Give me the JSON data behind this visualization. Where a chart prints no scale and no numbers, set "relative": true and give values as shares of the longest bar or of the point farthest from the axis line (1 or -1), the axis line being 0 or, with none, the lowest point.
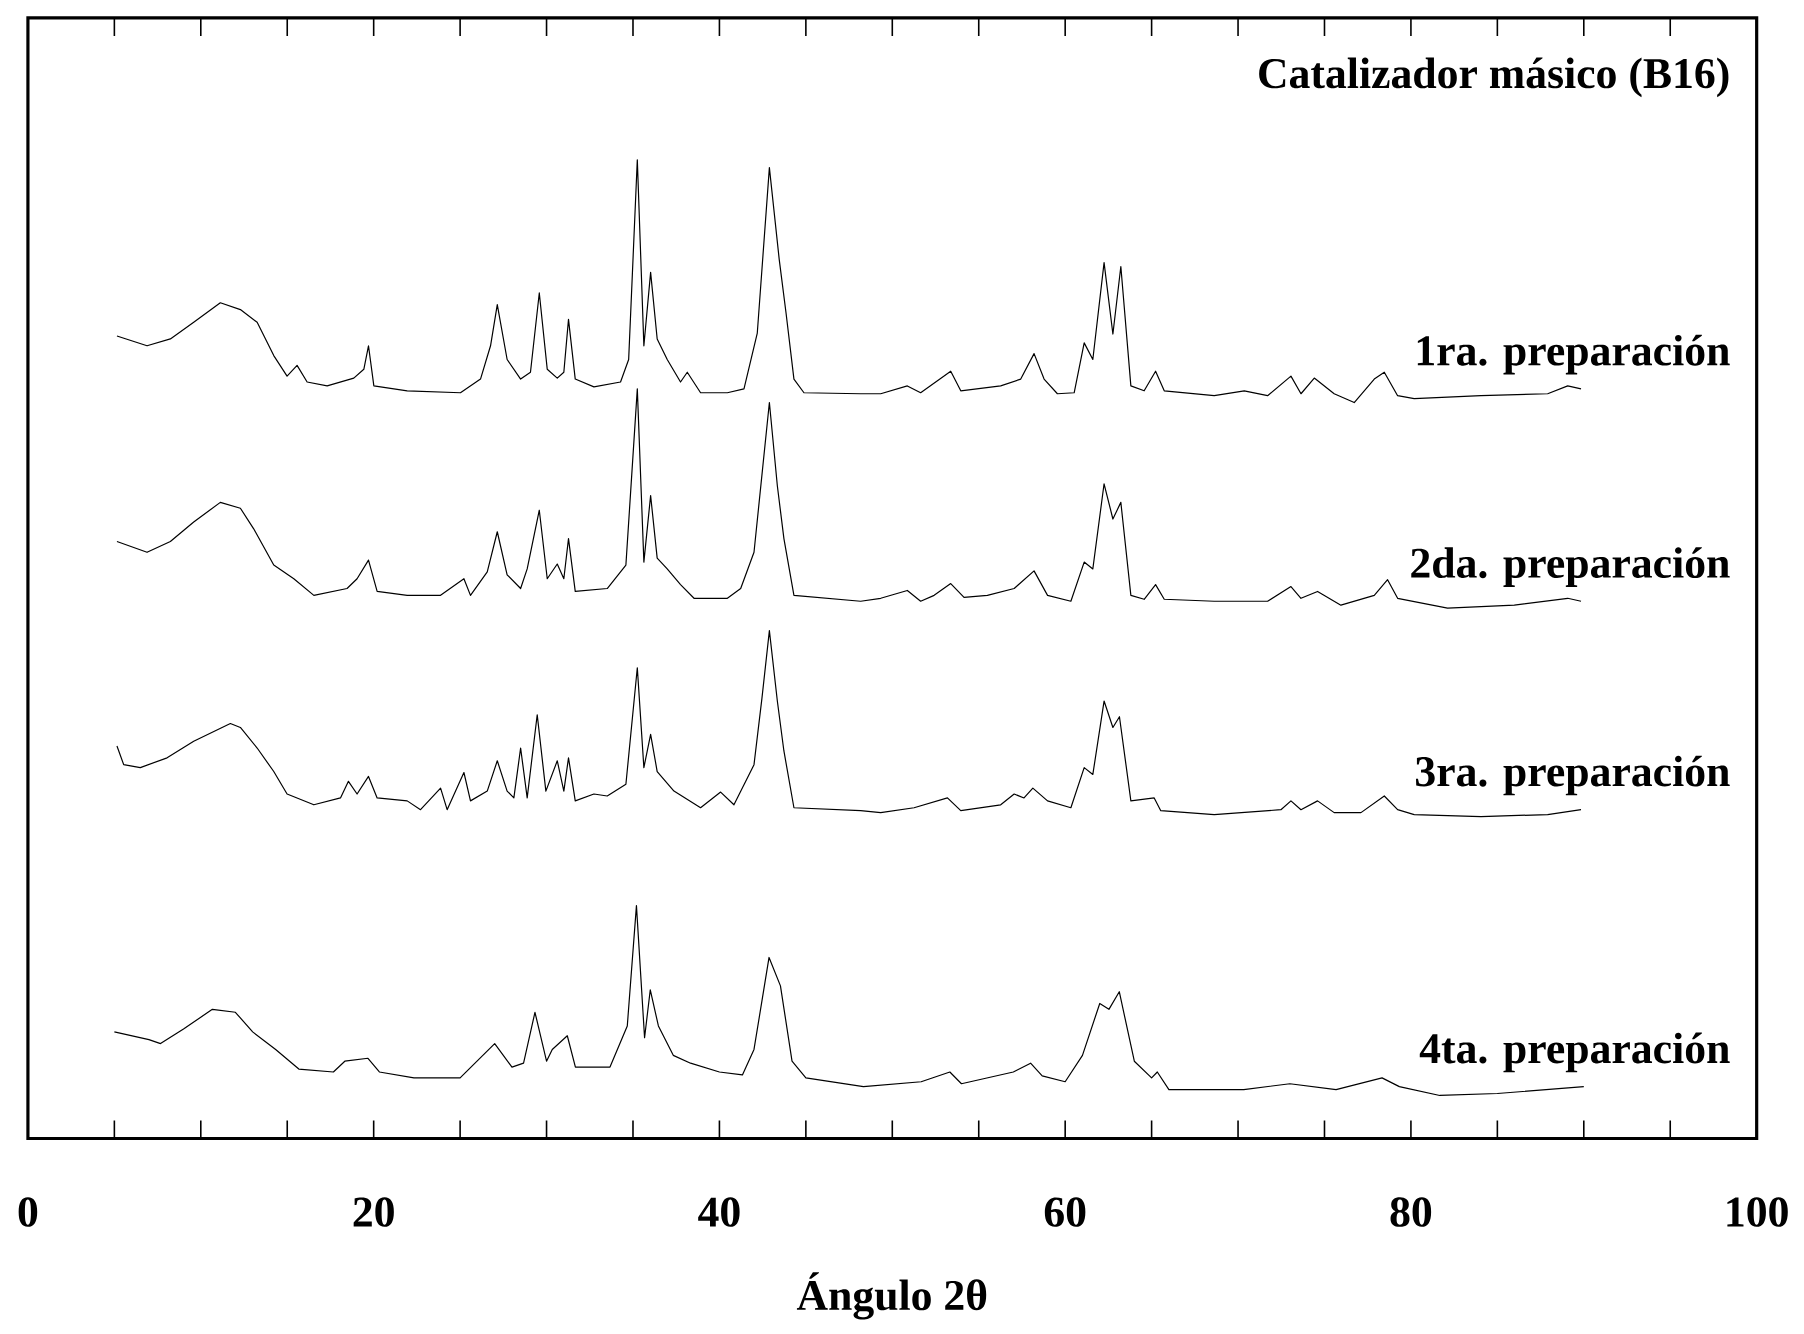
{
  "chart_data": {
    "type": "line",
    "title": "Catalizador másico (B16)",
    "xlabel": "Ángulo 2θ",
    "relative": true,
    "legend": false,
    "xlim": [
      0,
      100
    ],
    "xticks": [
      0,
      {
        "value": 5,
        "label": null
      },
      {
        "value": 10,
        "label": null
      },
      {
        "value": 15,
        "label": null
      },
      20,
      {
        "value": 25,
        "label": null
      },
      {
        "value": 30,
        "label": null
      },
      {
        "value": 35,
        "label": null
      },
      40,
      {
        "value": 45,
        "label": null
      },
      {
        "value": 50,
        "label": null
      },
      {
        "value": 55,
        "label": null
      },
      60,
      {
        "value": 65,
        "label": null
      },
      {
        "value": 70,
        "label": null
      },
      {
        "value": 75,
        "label": null
      },
      80,
      {
        "value": 85,
        "label": null
      },
      {
        "value": 90,
        "label": null
      },
      {
        "value": 95,
        "label": null
      },
      100
    ],
    "series": [
      {
        "name": "1ra. preparación",
        "color": "#000000",
        "x": [
          5.15,
          6.89,
          8.24,
          9.59,
          11.13,
          12.29,
          13.26,
          14.22,
          14.99,
          15.57,
          16.15,
          17.31,
          18.85,
          19.43,
          19.7,
          20.01,
          21.94,
          25.02,
          26.18,
          26.76,
          27.15,
          27.72,
          28.5,
          29.07,
          29.58,
          30.04,
          30.62,
          31.0,
          31.27,
          31.66,
          32.74,
          34.28,
          34.75,
          35.25,
          35.63,
          36.02,
          36.4,
          36.98,
          37.75,
          38.14,
          38.91,
          40.46,
          41.42,
          42.19,
          42.89,
          43.46,
          43.85,
          44.31,
          44.89,
          48.17,
          49.33,
          50.87,
          51.64,
          53.38,
          53.96,
          56.27,
          57.43,
          58.2,
          58.78,
          59.55,
          60.52,
          61.1,
          61.6,
          62.25,
          62.76,
          63.22,
          63.8,
          64.57,
          65.23,
          65.73,
          68.62,
          70.36,
          71.71,
          73.06,
          73.64,
          74.41,
          75.56,
          76.72,
          77.88,
          78.46,
          79.23,
          80.19,
          84.05,
          87.91,
          89.07,
          89.84
        ],
        "values": [
          0.82,
          0.81,
          0.817,
          0.834,
          0.854,
          0.847,
          0.834,
          0.8,
          0.779,
          0.79,
          0.773,
          0.769,
          0.777,
          0.786,
          0.81,
          0.769,
          0.764,
          0.762,
          0.776,
          0.81,
          0.852,
          0.796,
          0.776,
          0.783,
          0.864,
          0.786,
          0.777,
          0.783,
          0.837,
          0.776,
          0.768,
          0.773,
          0.796,
          1.0,
          0.81,
          0.885,
          0.817,
          0.796,
          0.773,
          0.783,
          0.762,
          0.762,
          0.766,
          0.823,
          0.992,
          0.898,
          0.844,
          0.776,
          0.762,
          0.761,
          0.761,
          0.769,
          0.762,
          0.784,
          0.764,
          0.769,
          0.776,
          0.802,
          0.776,
          0.761,
          0.762,
          0.813,
          0.796,
          0.895,
          0.822,
          0.891,
          0.769,
          0.764,
          0.784,
          0.764,
          0.759,
          0.764,
          0.759,
          0.779,
          0.761,
          0.777,
          0.761,
          0.752,
          0.776,
          0.783,
          0.759,
          0.756,
          0.759,
          0.761,
          0.769,
          0.766
        ]
      },
      {
        "name": "2da. preparación",
        "color": "#000000",
        "x": [
          5.15,
          6.89,
          8.24,
          9.59,
          11.13,
          12.29,
          13.06,
          14.22,
          15.38,
          16.54,
          18.46,
          19.04,
          19.7,
          20.2,
          21.94,
          23.87,
          25.22,
          25.6,
          26.57,
          27.15,
          27.72,
          28.5,
          28.88,
          29.58,
          30.04,
          30.62,
          31.0,
          31.27,
          31.66,
          33.51,
          34.59,
          35.25,
          35.63,
          36.02,
          36.4,
          36.98,
          37.75,
          38.53,
          40.46,
          41.23,
          42.0,
          42.89,
          43.35,
          43.73,
          44.31,
          48.17,
          49.33,
          50.87,
          51.64,
          52.42,
          53.38,
          54.15,
          55.5,
          57.05,
          58.2,
          58.98,
          60.33,
          61.1,
          61.6,
          62.25,
          62.76,
          63.22,
          63.8,
          64.57,
          65.23,
          65.73,
          68.62,
          71.71,
          73.06,
          73.64,
          74.6,
          75.95,
          77.88,
          78.65,
          79.23,
          82.12,
          85.98,
          89.07,
          89.84
        ],
        "values": [
          0.61,
          0.599,
          0.61,
          0.63,
          0.65,
          0.644,
          0.623,
          0.586,
          0.572,
          0.555,
          0.562,
          0.572,
          0.591,
          0.559,
          0.555,
          0.555,
          0.572,
          0.555,
          0.579,
          0.62,
          0.576,
          0.562,
          0.582,
          0.642,
          0.572,
          0.587,
          0.572,
          0.613,
          0.559,
          0.562,
          0.586,
          0.766,
          0.589,
          0.657,
          0.593,
          0.582,
          0.566,
          0.552,
          0.552,
          0.562,
          0.599,
          0.752,
          0.667,
          0.613,
          0.555,
          0.549,
          0.552,
          0.56,
          0.549,
          0.555,
          0.567,
          0.553,
          0.555,
          0.562,
          0.58,
          0.555,
          0.549,
          0.589,
          0.582,
          0.669,
          0.633,
          0.65,
          0.555,
          0.551,
          0.566,
          0.551,
          0.549,
          0.549,
          0.564,
          0.552,
          0.559,
          0.545,
          0.555,
          0.571,
          0.552,
          0.542,
          0.545,
          0.552,
          0.549
        ]
      },
      {
        "name": "3ra. preparación",
        "color": "#000000",
        "x": [
          5.15,
          5.54,
          6.5,
          8.05,
          9.59,
          11.71,
          12.29,
          13.26,
          14.22,
          14.99,
          16.54,
          18.08,
          18.54,
          19.04,
          19.7,
          20.2,
          21.94,
          22.71,
          23.87,
          24.25,
          25.22,
          25.6,
          26.57,
          27.15,
          27.72,
          28.11,
          28.5,
          28.88,
          29.46,
          29.96,
          30.62,
          31.0,
          31.27,
          31.66,
          32.74,
          33.51,
          34.59,
          35.25,
          35.63,
          36.02,
          36.4,
          37.37,
          38.91,
          40.07,
          40.84,
          42.0,
          42.46,
          42.89,
          43.35,
          43.73,
          44.31,
          48.17,
          49.33,
          51.26,
          53.19,
          53.96,
          56.27,
          57.05,
          57.62,
          58.13,
          58.98,
          60.33,
          61.1,
          61.6,
          62.25,
          62.76,
          63.14,
          63.8,
          65.15,
          65.53,
          68.62,
          72.48,
          73.06,
          73.64,
          74.6,
          75.56,
          77.11,
          78.46,
          79.23,
          80.19,
          84.05,
          87.91,
          89.84
        ],
        "values": [
          0.401,
          0.382,
          0.379,
          0.389,
          0.406,
          0.424,
          0.42,
          0.399,
          0.375,
          0.352,
          0.341,
          0.348,
          0.365,
          0.352,
          0.37,
          0.348,
          0.345,
          0.336,
          0.358,
          0.336,
          0.374,
          0.345,
          0.355,
          0.386,
          0.355,
          0.348,
          0.399,
          0.348,
          0.433,
          0.355,
          0.386,
          0.355,
          0.389,
          0.345,
          0.352,
          0.35,
          0.362,
          0.481,
          0.379,
          0.413,
          0.375,
          0.355,
          0.338,
          0.354,
          0.341,
          0.382,
          0.45,
          0.519,
          0.447,
          0.396,
          0.338,
          0.335,
          0.333,
          0.338,
          0.348,
          0.335,
          0.341,
          0.352,
          0.348,
          0.358,
          0.345,
          0.338,
          0.379,
          0.372,
          0.447,
          0.42,
          0.431,
          0.345,
          0.348,
          0.335,
          0.331,
          0.336,
          0.345,
          0.336,
          0.345,
          0.333,
          0.333,
          0.35,
          0.336,
          0.331,
          0.329,
          0.331,
          0.336
        ]
      },
      {
        "name": "4ta. preparación",
        "color": "#000000",
        "x": [
          5.0,
          7.0,
          7.67,
          9.0,
          10.67,
          12.0,
          13.0,
          14.33,
          15.67,
          17.67,
          18.33,
          19.67,
          20.33,
          22.33,
          25.0,
          27.0,
          28.0,
          28.67,
          29.33,
          30.0,
          30.33,
          31.2,
          31.67,
          33.67,
          34.67,
          35.2,
          35.67,
          36.0,
          36.47,
          37.33,
          38.33,
          40.0,
          41.33,
          42.0,
          42.87,
          43.53,
          44.2,
          45.0,
          48.33,
          51.67,
          53.33,
          54.0,
          57.0,
          58.0,
          58.67,
          60.0,
          61.0,
          62.0,
          62.53,
          63.13,
          64.0,
          65.0,
          65.33,
          66.0,
          70.33,
          73.0,
          75.67,
          78.33,
          79.33,
          81.67,
          85.0,
          90.0
        ],
        "values": [
          0.109,
          0.101,
          0.097,
          0.112,
          0.132,
          0.129,
          0.109,
          0.091,
          0.071,
          0.068,
          0.079,
          0.082,
          0.068,
          0.062,
          0.062,
          0.097,
          0.073,
          0.077,
          0.129,
          0.079,
          0.091,
          0.105,
          0.073,
          0.073,
          0.115,
          0.238,
          0.103,
          0.152,
          0.115,
          0.085,
          0.077,
          0.068,
          0.065,
          0.091,
          0.185,
          0.156,
          0.079,
          0.062,
          0.053,
          0.058,
          0.068,
          0.056,
          0.068,
          0.077,
          0.064,
          0.058,
          0.085,
          0.138,
          0.132,
          0.15,
          0.079,
          0.062,
          0.068,
          0.05,
          0.05,
          0.056,
          0.05,
          0.062,
          0.053,
          0.044,
          0.046,
          0.053
        ]
      }
    ]
  }
}
